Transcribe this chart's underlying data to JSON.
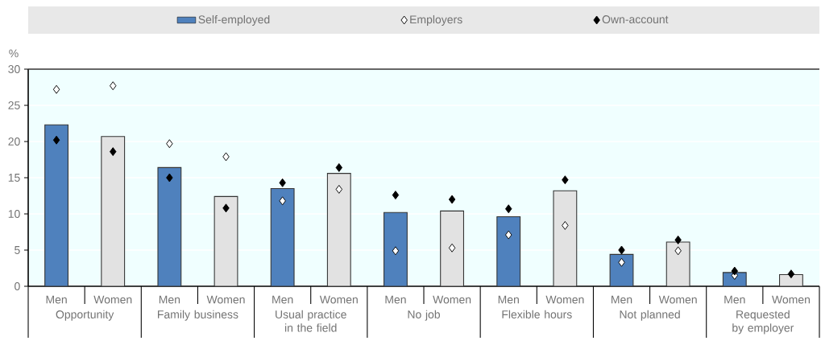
{
  "chart_data": {
    "type": "bar",
    "ylabel": "%",
    "categories": [
      "Men",
      "Women",
      "Men",
      "Women",
      "Men",
      "Women",
      "Men",
      "Women",
      "Men",
      "Women",
      "Men",
      "Women",
      "Men",
      "Women"
    ],
    "series": [
      {
        "name": "Self-employed",
        "color": "#4f81bd",
        "colors": [
          "#4f81bd",
          "#e2e2e2",
          "#4f81bd",
          "#e2e2e2",
          "#4f81bd",
          "#e2e2e2",
          "#4f81bd",
          "#e2e2e2",
          "#4f81bd",
          "#e2e2e2",
          "#4f81bd",
          "#e2e2e2",
          "#4f81bd",
          "#e2e2e2"
        ],
        "values": [
          22.3,
          20.7,
          16.4,
          12.4,
          13.5,
          15.6,
          10.2,
          10.4,
          9.6,
          13.2,
          4.4,
          6.1,
          1.9,
          1.6
        ]
      },
      {
        "name": "Employers",
        "type": "scatter",
        "color": "#ffffff",
        "values": [
          27.2,
          27.7,
          19.7,
          17.9,
          11.8,
          13.4,
          4.9,
          5.3,
          7.1,
          8.4,
          3.3,
          4.9,
          1.5,
          null
        ]
      },
      {
        "name": "Own-account",
        "type": "scatter",
        "color": "#000000",
        "values": [
          20.2,
          18.6,
          15.0,
          10.8,
          14.3,
          16.4,
          12.6,
          12.0,
          10.7,
          14.7,
          5.0,
          6.4,
          2.1,
          1.7
        ]
      }
    ],
    "annotations": [
      "Opportunity",
      "Family business",
      "Usual practice in the field",
      "No job",
      "Flexible hours",
      "Not planned",
      "Requested by employer"
    ],
    "ylim": [
      0,
      30
    ],
    "yticks": [
      0,
      5,
      10,
      15,
      20,
      25,
      30
    ],
    "grid": "y",
    "legend": "top",
    "marker": "diamond"
  }
}
